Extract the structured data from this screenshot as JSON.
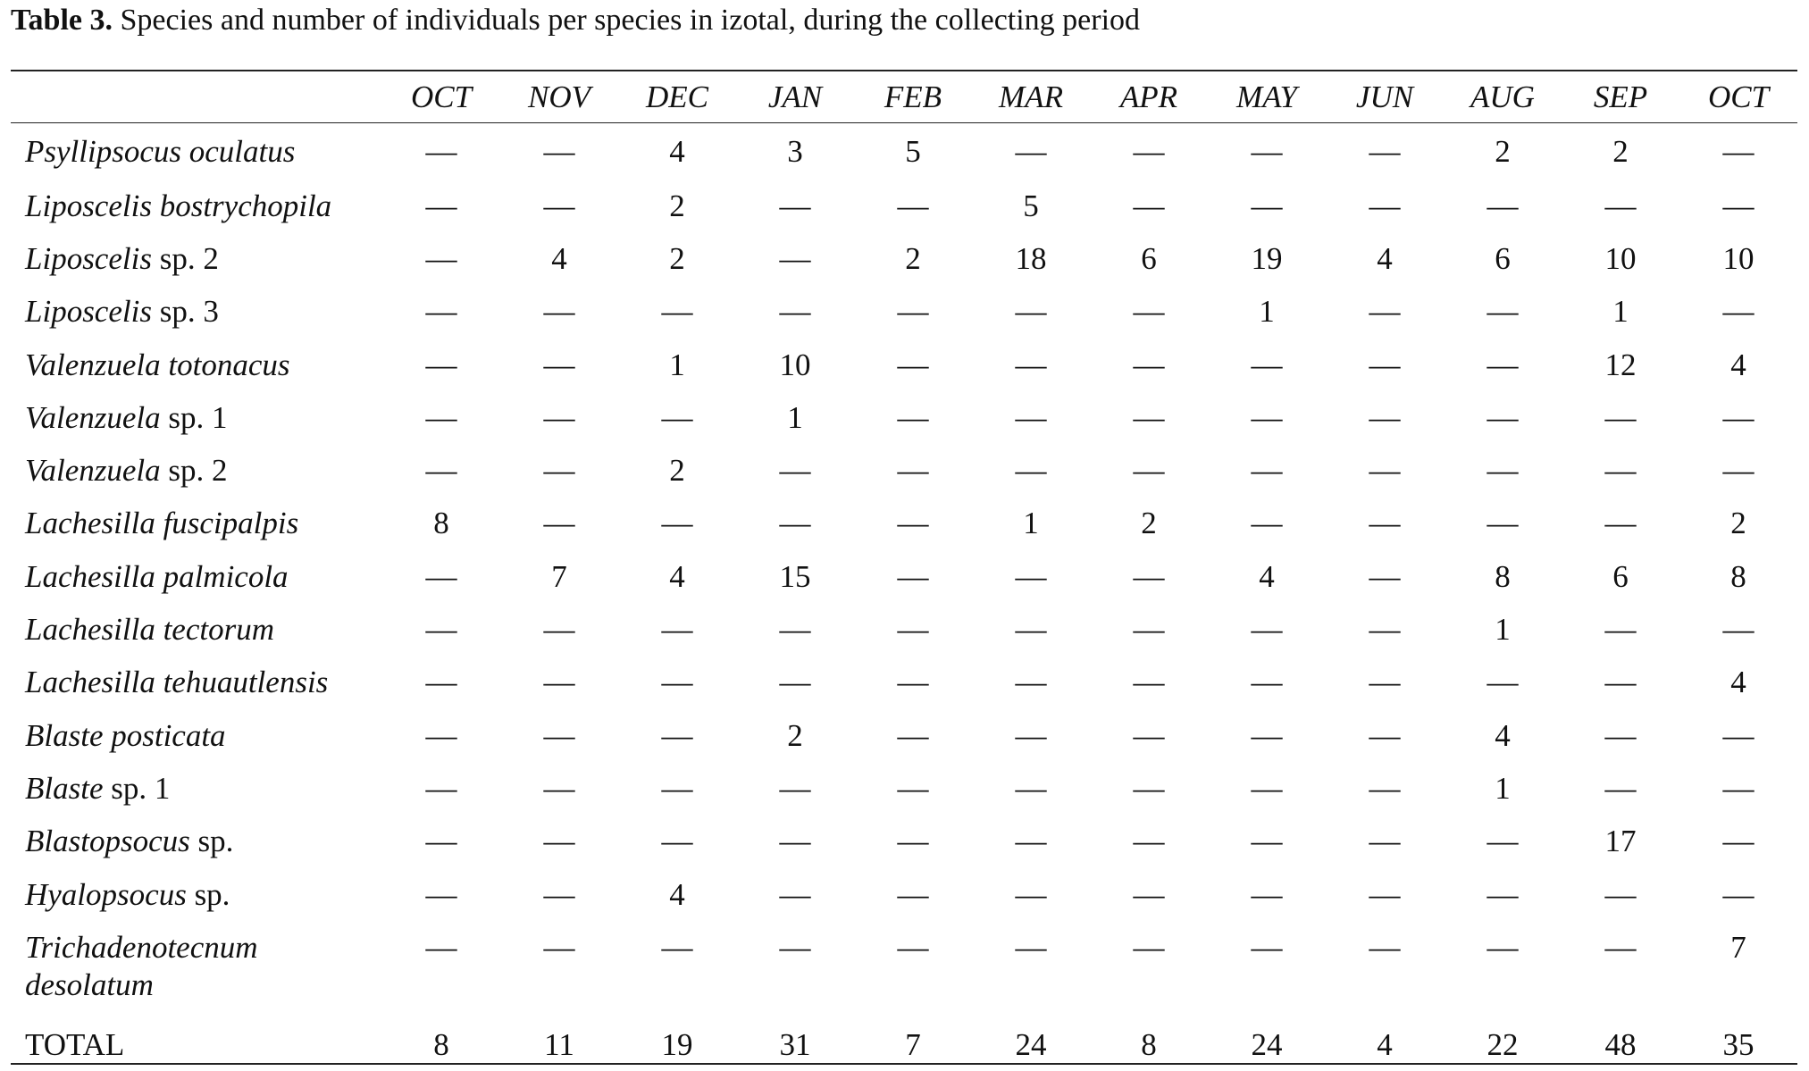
{
  "caption": {
    "label": "Table 3.",
    "text": " Species and number of individuals per species in izotal, during the collecting period"
  },
  "table": {
    "columns": [
      "OCT",
      "NOV",
      "DEC",
      "JAN",
      "FEB",
      "MAR",
      "APR",
      "MAY",
      "JUN",
      "AUG",
      "SEP",
      "OCT"
    ],
    "rows": [
      {
        "italic": "Psyllipsocus oculatus",
        "plain": "",
        "values": [
          "—",
          "—",
          "4",
          "3",
          "5",
          "—",
          "—",
          "—",
          "—",
          "2",
          "2",
          "—"
        ]
      },
      {
        "italic": "Liposcelis bostrychopila",
        "plain": "",
        "values": [
          "—",
          "—",
          "2",
          "—",
          "—",
          "5",
          "—",
          "—",
          "—",
          "—",
          "—",
          "—"
        ]
      },
      {
        "italic": "Liposcelis",
        "plain": " sp. 2",
        "values": [
          "—",
          "4",
          "2",
          "—",
          "2",
          "18",
          "6",
          "19",
          "4",
          "6",
          "10",
          "10"
        ]
      },
      {
        "italic": "Liposcelis",
        "plain": " sp. 3",
        "values": [
          "—",
          "—",
          "—",
          "—",
          "—",
          "—",
          "—",
          "1",
          "—",
          "—",
          "1",
          "—"
        ]
      },
      {
        "italic": "Valenzuela totonacus",
        "plain": "",
        "values": [
          "—",
          "—",
          "1",
          "10",
          "—",
          "—",
          "—",
          "—",
          "—",
          "—",
          "12",
          "4"
        ]
      },
      {
        "italic": "Valenzuela",
        "plain": " sp. 1",
        "values": [
          "—",
          "—",
          "—",
          "1",
          "—",
          "—",
          "—",
          "—",
          "—",
          "—",
          "—",
          "—"
        ]
      },
      {
        "italic": "Valenzuela",
        "plain": " sp. 2",
        "values": [
          "—",
          "—",
          "2",
          "—",
          "—",
          "—",
          "—",
          "—",
          "—",
          "—",
          "—",
          "—"
        ]
      },
      {
        "italic": "Lachesilla fuscipalpis",
        "plain": "",
        "values": [
          "8",
          "—",
          "—",
          "—",
          "—",
          "1",
          "2",
          "—",
          "—",
          "—",
          "—",
          "2"
        ]
      },
      {
        "italic": "Lachesilla palmicola",
        "plain": "",
        "values": [
          "—",
          "7",
          "4",
          "15",
          "—",
          "—",
          "—",
          "4",
          "—",
          "8",
          "6",
          "8"
        ]
      },
      {
        "italic": "Lachesilla tectorum",
        "plain": "",
        "values": [
          "—",
          "—",
          "—",
          "—",
          "—",
          "—",
          "—",
          "—",
          "—",
          "1",
          "—",
          "—"
        ]
      },
      {
        "italic": "Lachesilla tehuautlensis",
        "plain": "",
        "values": [
          "—",
          "—",
          "—",
          "—",
          "—",
          "—",
          "—",
          "—",
          "—",
          "—",
          "—",
          "4"
        ]
      },
      {
        "italic": "Blaste posticata",
        "plain": "",
        "values": [
          "—",
          "—",
          "—",
          "2",
          "—",
          "—",
          "—",
          "—",
          "—",
          "4",
          "—",
          "—"
        ]
      },
      {
        "italic": "Blaste",
        "plain": " sp. 1",
        "values": [
          "—",
          "—",
          "—",
          "—",
          "—",
          "—",
          "—",
          "—",
          "—",
          "1",
          "—",
          "—"
        ]
      },
      {
        "italic": "Blastopsocus",
        "plain": " sp.",
        "values": [
          "—",
          "—",
          "—",
          "—",
          "—",
          "—",
          "—",
          "—",
          "—",
          "—",
          "17",
          "—"
        ]
      },
      {
        "italic": "Hyalopsocus",
        "plain": " sp.",
        "values": [
          "—",
          "—",
          "4",
          "—",
          "—",
          "—",
          "—",
          "—",
          "—",
          "—",
          "—",
          "—"
        ]
      },
      {
        "italic": "Trichadenotecnum desolatum",
        "plain": "",
        "values": [
          "—",
          "—",
          "—",
          "—",
          "—",
          "—",
          "—",
          "—",
          "—",
          "—",
          "—",
          "7"
        ]
      }
    ],
    "total": {
      "label": "TOTAL",
      "values": [
        "8",
        "11",
        "19",
        "31",
        "7",
        "24",
        "8",
        "24",
        "4",
        "22",
        "48",
        "35"
      ]
    }
  }
}
